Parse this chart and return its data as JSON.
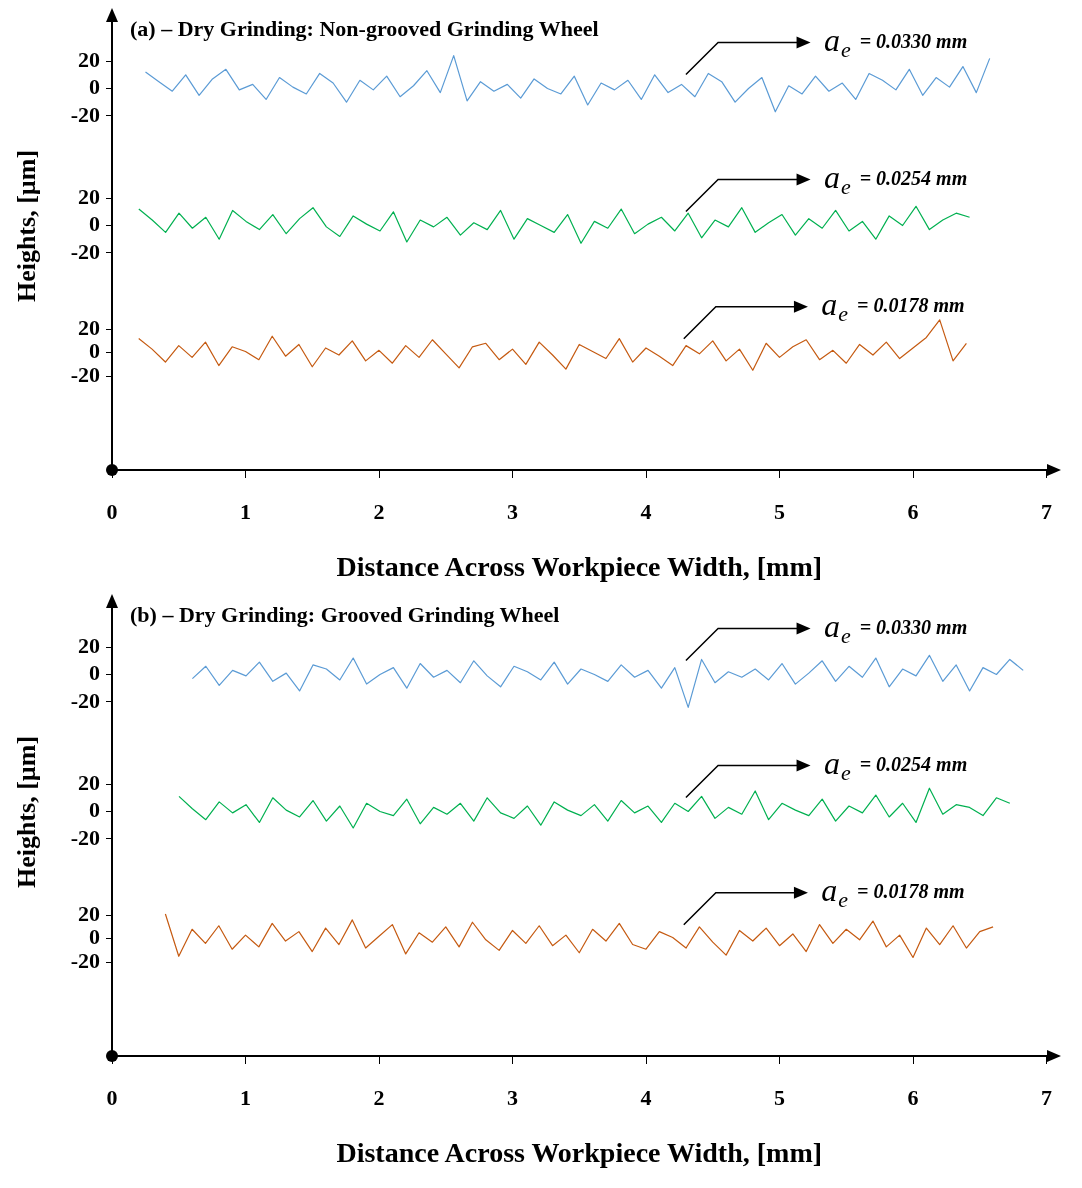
{
  "chart_data": [
    {
      "type": "line",
      "title": "(a) – Dry Grinding: Non-grooved Grinding Wheel",
      "xlim": [
        0,
        7
      ],
      "ylim": [
        -50,
        50
      ],
      "yticks": [
        -20,
        0,
        20
      ],
      "tick_labels": "y",
      "marker": "none",
      "line_style": "solid",
      "annotations": [
        "a$_{e}$ = 0.0330 mm"
      ],
      "series": [
        {
          "color": "#5b9bd5",
          "x": [
            0.25,
            0.35,
            0.45,
            0.55,
            0.65,
            0.75,
            0.85,
            0.95,
            1.05,
            1.15,
            1.25,
            1.35,
            1.45,
            1.55,
            1.65,
            1.75,
            1.85,
            1.95,
            2.05,
            2.15,
            2.25,
            2.35,
            2.45,
            2.55,
            2.65,
            2.75,
            2.85,
            2.95,
            3.05,
            3.15,
            3.25,
            3.35,
            3.45,
            3.55,
            3.65,
            3.75,
            3.85,
            3.95,
            4.05,
            4.15,
            4.25,
            4.35,
            4.45,
            4.55,
            4.65,
            4.75,
            4.85,
            4.95,
            5.05,
            5.15,
            5.25,
            5.35,
            5.45,
            5.55,
            5.65,
            5.75,
            5.85,
            5.95,
            6.05,
            6.15,
            6.25,
            6.35,
            6.45,
            6.55
          ],
          "values": [
            12,
            5,
            -2,
            10,
            -5,
            7,
            14,
            -1,
            3,
            -8,
            8,
            1,
            -4,
            11,
            4,
            -10,
            6,
            -1,
            9,
            -6,
            2,
            13,
            -3,
            24,
            -9,
            5,
            -2,
            3,
            -7,
            7,
            0,
            -4,
            9,
            -12,
            4,
            -1,
            6,
            -8,
            10,
            -3,
            3,
            -6,
            11,
            5,
            -10,
            0,
            8,
            -17,
            2,
            -4,
            9,
            -2,
            4,
            -8,
            11,
            6,
            -1,
            14,
            -5,
            8,
            1,
            16,
            -3,
            22
          ]
        }
      ]
    },
    {
      "type": "line",
      "ylabel": "Heights, [µm]",
      "xlim": [
        0,
        7
      ],
      "ylim": [
        -50,
        50
      ],
      "yticks": [
        -20,
        0,
        20
      ],
      "tick_labels": "y",
      "marker": "none",
      "line_style": "solid",
      "annotations": [
        "a$_{e}$ = 0.0254 mm"
      ],
      "series": [
        {
          "color": "#00b050",
          "x": [
            0.2,
            0.3,
            0.4,
            0.5,
            0.6,
            0.7,
            0.8,
            0.9,
            1.0,
            1.1,
            1.2,
            1.3,
            1.4,
            1.5,
            1.6,
            1.7,
            1.8,
            1.9,
            2.0,
            2.1,
            2.2,
            2.3,
            2.4,
            2.5,
            2.6,
            2.7,
            2.8,
            2.9,
            3.0,
            3.1,
            3.2,
            3.3,
            3.4,
            3.5,
            3.6,
            3.7,
            3.8,
            3.9,
            4.0,
            4.1,
            4.2,
            4.3,
            4.4,
            4.5,
            4.6,
            4.7,
            4.8,
            4.9,
            5.0,
            5.1,
            5.2,
            5.3,
            5.4,
            5.5,
            5.6,
            5.7,
            5.8,
            5.9,
            6.0,
            6.1,
            6.2,
            6.3,
            6.4
          ],
          "values": [
            12,
            4,
            -5,
            9,
            -2,
            6,
            -10,
            11,
            3,
            -3,
            8,
            -6,
            5,
            13,
            -1,
            -8,
            7,
            1,
            -4,
            10,
            -12,
            4,
            -1,
            6,
            -7,
            2,
            -3,
            11,
            -10,
            5,
            0,
            -5,
            8,
            -13,
            3,
            -2,
            12,
            -6,
            1,
            6,
            -4,
            9,
            -9,
            4,
            -1,
            13,
            -5,
            2,
            8,
            -7,
            5,
            -2,
            11,
            -4,
            3,
            -10,
            7,
            0,
            14,
            -3,
            4,
            9,
            6
          ]
        }
      ]
    },
    {
      "type": "line",
      "xlabel": "Distance Across Workpiece Width, [mm]",
      "xlim": [
        0,
        7
      ],
      "xticks": [
        0,
        1,
        2,
        3,
        4,
        5,
        6,
        7
      ],
      "ylim": [
        -100,
        50
      ],
      "yticks": [
        -20,
        0,
        20
      ],
      "marker": "none",
      "line_style": "solid",
      "annotations": [
        "a$_{e}$ = 0.0178 mm"
      ],
      "series": [
        {
          "color": "#c55a11",
          "x": [
            0.2,
            0.3,
            0.4,
            0.5,
            0.6,
            0.7,
            0.8,
            0.9,
            1.0,
            1.1,
            1.2,
            1.3,
            1.4,
            1.5,
            1.6,
            1.7,
            1.8,
            1.9,
            2.0,
            2.1,
            2.2,
            2.3,
            2.4,
            2.5,
            2.6,
            2.7,
            2.8,
            2.9,
            3.0,
            3.1,
            3.2,
            3.3,
            3.4,
            3.5,
            3.6,
            3.7,
            3.8,
            3.9,
            4.0,
            4.1,
            4.2,
            4.3,
            4.4,
            4.5,
            4.6,
            4.7,
            4.8,
            4.9,
            5.0,
            5.1,
            5.2,
            5.3,
            5.4,
            5.5,
            5.6,
            5.7,
            5.8,
            5.9,
            6.0,
            6.1,
            6.2,
            6.3,
            6.4
          ],
          "values": [
            12,
            3,
            -8,
            6,
            -4,
            9,
            -11,
            5,
            1,
            -6,
            14,
            -3,
            7,
            -12,
            4,
            -2,
            10,
            -7,
            2,
            -9,
            6,
            -4,
            11,
            -1,
            -13,
            5,
            8,
            -6,
            3,
            -10,
            9,
            -2,
            -14,
            7,
            1,
            -5,
            12,
            -8,
            4,
            -3,
            -11,
            6,
            -1,
            10,
            -7,
            3,
            -15,
            8,
            -4,
            5,
            11,
            -6,
            2,
            -9,
            7,
            -2,
            9,
            -5,
            4,
            13,
            28,
            -7,
            8
          ]
        }
      ]
    },
    {
      "type": "line",
      "title": "(b) – Dry Grinding: Grooved Grinding Wheel",
      "xlim": [
        0,
        7
      ],
      "ylim": [
        -50,
        50
      ],
      "yticks": [
        -20,
        0,
        20
      ],
      "tick_labels": "y",
      "marker": "none",
      "line_style": "solid",
      "annotations": [
        "a$_{e}$ = 0.0330 mm"
      ],
      "series": [
        {
          "color": "#5b9bd5",
          "x": [
            0.6,
            0.7,
            0.8,
            0.9,
            1.0,
            1.1,
            1.2,
            1.3,
            1.4,
            1.5,
            1.6,
            1.7,
            1.8,
            1.9,
            2.0,
            2.1,
            2.2,
            2.3,
            2.4,
            2.5,
            2.6,
            2.7,
            2.8,
            2.9,
            3.0,
            3.1,
            3.2,
            3.3,
            3.4,
            3.5,
            3.6,
            3.7,
            3.8,
            3.9,
            4.0,
            4.1,
            4.2,
            4.3,
            4.4,
            4.5,
            4.6,
            4.7,
            4.8,
            4.9,
            5.0,
            5.1,
            5.2,
            5.3,
            5.4,
            5.5,
            5.6,
            5.7,
            5.8,
            5.9,
            6.0,
            6.1,
            6.2,
            6.3,
            6.4,
            6.5,
            6.6,
            6.7,
            6.8
          ],
          "values": [
            -3,
            6,
            -8,
            3,
            -1,
            9,
            -5,
            1,
            -12,
            7,
            4,
            -4,
            12,
            -7,
            0,
            5,
            -10,
            8,
            -2,
            3,
            -6,
            10,
            -1,
            -9,
            6,
            2,
            -4,
            9,
            -7,
            4,
            0,
            -5,
            7,
            -2,
            3,
            -10,
            5,
            -24,
            11,
            -6,
            2,
            -2,
            4,
            -4,
            8,
            -7,
            1,
            10,
            -5,
            6,
            -2,
            12,
            -9,
            4,
            -1,
            14,
            -5,
            7,
            -12,
            5,
            0,
            11,
            3
          ]
        }
      ]
    },
    {
      "type": "line",
      "ylabel": "Heights, [µm]",
      "xlim": [
        0,
        7
      ],
      "ylim": [
        -50,
        50
      ],
      "yticks": [
        -20,
        0,
        20
      ],
      "tick_labels": "y",
      "marker": "none",
      "line_style": "solid",
      "annotations": [
        "a$_{e}$ = 0.0254 mm"
      ],
      "series": [
        {
          "color": "#00b050",
          "x": [
            0.5,
            0.6,
            0.7,
            0.8,
            0.9,
            1.0,
            1.1,
            1.2,
            1.3,
            1.4,
            1.5,
            1.6,
            1.7,
            1.8,
            1.9,
            2.0,
            2.1,
            2.2,
            2.3,
            2.4,
            2.5,
            2.6,
            2.7,
            2.8,
            2.9,
            3.0,
            3.1,
            3.2,
            3.3,
            3.4,
            3.5,
            3.6,
            3.7,
            3.8,
            3.9,
            4.0,
            4.1,
            4.2,
            4.3,
            4.4,
            4.5,
            4.6,
            4.7,
            4.8,
            4.9,
            5.0,
            5.1,
            5.2,
            5.3,
            5.4,
            5.5,
            5.6,
            5.7,
            5.8,
            5.9,
            6.0,
            6.1,
            6.2,
            6.3,
            6.4,
            6.5,
            6.6,
            6.7
          ],
          "values": [
            11,
            2,
            -6,
            7,
            -1,
            5,
            -8,
            10,
            1,
            -4,
            8,
            -7,
            4,
            -12,
            6,
            0,
            -3,
            9,
            -9,
            3,
            -2,
            6,
            -7,
            10,
            -1,
            -5,
            4,
            -10,
            7,
            1,
            -3,
            5,
            -7,
            8,
            -1,
            4,
            -8,
            6,
            0,
            11,
            -5,
            3,
            -2,
            15,
            -6,
            6,
            1,
            -3,
            9,
            -7,
            4,
            -1,
            12,
            -4,
            6,
            -8,
            17,
            -2,
            5,
            3,
            -3,
            10,
            6
          ]
        }
      ]
    },
    {
      "type": "line",
      "xlabel": "Distance Across Workpiece Width, [mm]",
      "xlim": [
        0,
        7
      ],
      "xticks": [
        0,
        1,
        2,
        3,
        4,
        5,
        6,
        7
      ],
      "ylim": [
        -100,
        50
      ],
      "yticks": [
        -20,
        0,
        20
      ],
      "marker": "none",
      "line_style": "solid",
      "annotations": [
        "a$_{e}$ = 0.0178 mm"
      ],
      "series": [
        {
          "color": "#c55a11",
          "x": [
            0.4,
            0.5,
            0.6,
            0.7,
            0.8,
            0.9,
            1.0,
            1.1,
            1.2,
            1.3,
            1.4,
            1.5,
            1.6,
            1.7,
            1.8,
            1.9,
            2.0,
            2.1,
            2.2,
            2.3,
            2.4,
            2.5,
            2.6,
            2.7,
            2.8,
            2.9,
            3.0,
            3.1,
            3.2,
            3.3,
            3.4,
            3.5,
            3.6,
            3.7,
            3.8,
            3.9,
            4.0,
            4.1,
            4.2,
            4.3,
            4.4,
            4.5,
            4.6,
            4.7,
            4.8,
            4.9,
            5.0,
            5.1,
            5.2,
            5.3,
            5.4,
            5.5,
            5.6,
            5.7,
            5.8,
            5.9,
            6.0,
            6.1,
            6.2,
            6.3,
            6.4,
            6.5,
            6.6
          ],
          "values": [
            21,
            -15,
            8,
            -4,
            11,
            -9,
            3,
            -7,
            13,
            -2,
            6,
            -11,
            9,
            -5,
            16,
            -8,
            2,
            12,
            -13,
            5,
            -3,
            10,
            -7,
            14,
            -1,
            -10,
            7,
            -4,
            11,
            -6,
            3,
            -12,
            8,
            -2,
            13,
            -5,
            -9,
            6,
            1,
            -8,
            10,
            -3,
            -14,
            7,
            -2,
            9,
            -6,
            4,
            -11,
            12,
            -4,
            8,
            -1,
            15,
            -7,
            3,
            -16,
            9,
            -5,
            11,
            -8,
            6,
            10
          ]
        }
      ]
    }
  ]
}
